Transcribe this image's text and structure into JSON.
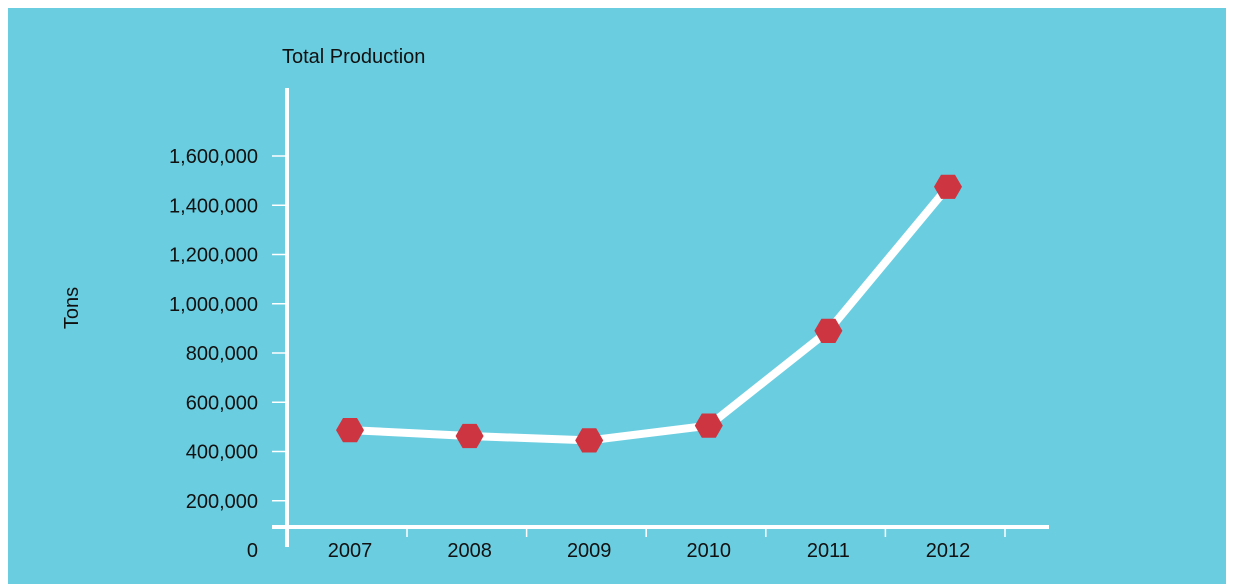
{
  "colors": {
    "background": "#6acde0",
    "line": "#ffffff",
    "marker": "#cd3540",
    "text": "#111111"
  },
  "chart_data": {
    "type": "line",
    "title": "Total Production",
    "xlabel": "",
    "ylabel": "Tons",
    "categories": [
      "2007",
      "2008",
      "2009",
      "2010",
      "2011",
      "2012"
    ],
    "series": [
      {
        "values": [
          487000,
          463000,
          445000,
          505000,
          890000,
          1475000
        ]
      }
    ],
    "y_ticks": [
      0,
      200000,
      400000,
      600000,
      800000,
      1000000,
      1200000,
      1400000,
      1600000
    ],
    "y_tick_labels": [
      "0",
      "200,000",
      "400,000",
      "600,000",
      "800,000",
      "1,000,000",
      "1,200,000",
      "1,400,000",
      "1,600,000"
    ],
    "ylim": [
      0,
      1600000
    ],
    "grid": false,
    "legend": "none",
    "marker": "hexagon"
  }
}
